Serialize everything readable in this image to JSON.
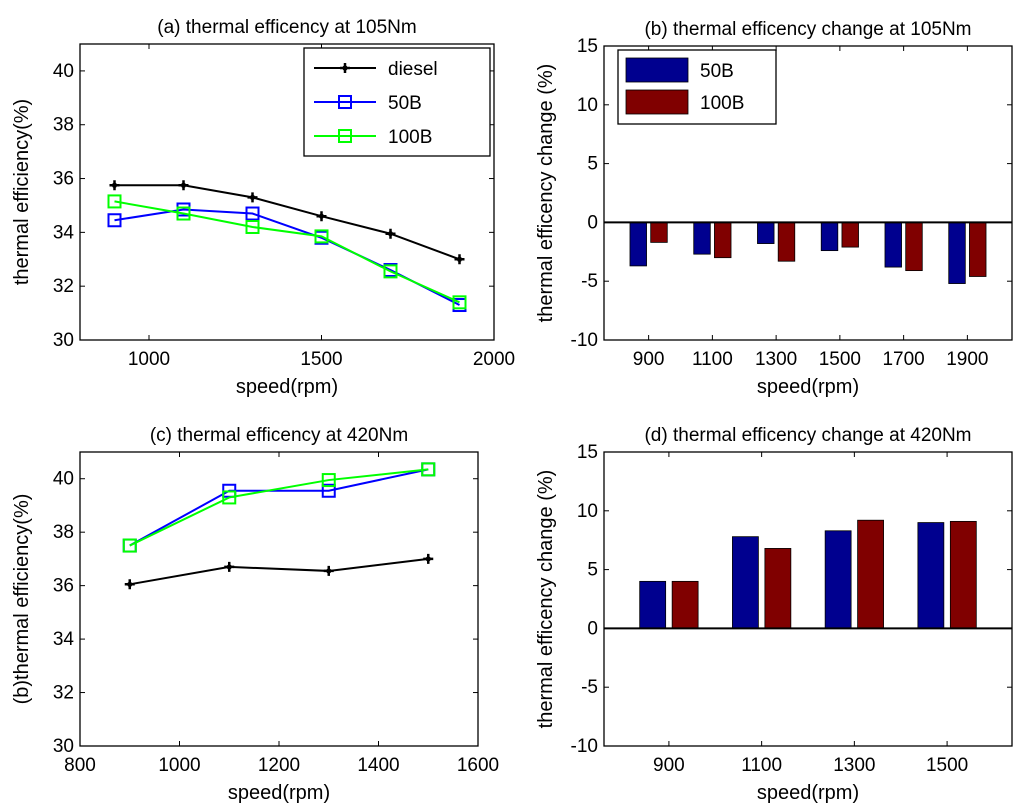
{
  "chart_data": [
    {
      "id": "a",
      "type": "line",
      "title": "(a) thermal efficency at 105Nm",
      "xlabel": "speed(rpm)",
      "ylabel": "thermal efficiency(%)",
      "xlim": [
        800,
        2000
      ],
      "ylim": [
        30,
        41
      ],
      "xticks": [
        1000,
        1500,
        2000
      ],
      "yticks": [
        30,
        32,
        34,
        36,
        38,
        40
      ],
      "x": [
        900,
        1100,
        1300,
        1500,
        1700,
        1900
      ],
      "series": [
        {
          "name": "diesel",
          "marker": "plus",
          "color": "#000000",
          "values": [
            35.75,
            35.75,
            35.3,
            34.6,
            33.95,
            33.0
          ]
        },
        {
          "name": "50B",
          "marker": "square",
          "color": "#0000ff",
          "values": [
            34.45,
            34.85,
            34.7,
            33.8,
            32.6,
            31.3
          ]
        },
        {
          "name": "100B",
          "marker": "square",
          "color": "#00ff00",
          "values": [
            35.15,
            34.7,
            34.2,
            33.85,
            32.55,
            31.4
          ]
        }
      ],
      "legend": "top-right",
      "grid": false
    },
    {
      "id": "b",
      "type": "bar",
      "title": "(b) thermal efficency change at 105Nm",
      "xlabel": "speed(rpm)",
      "ylabel": "thermal efficency change (%)",
      "ylim": [
        -10,
        15
      ],
      "yticks": [
        -10,
        -5,
        0,
        5,
        10,
        15
      ],
      "categories": [
        "900",
        "1100",
        "1300",
        "1500",
        "1700",
        "1900"
      ],
      "series": [
        {
          "name": "50B",
          "color": "#00008f",
          "values": [
            -3.7,
            -2.7,
            -1.8,
            -2.4,
            -3.8,
            -5.2
          ]
        },
        {
          "name": "100B",
          "color": "#800000",
          "values": [
            -1.7,
            -3.0,
            -3.3,
            -2.1,
            -4.1,
            -4.6
          ]
        }
      ],
      "legend": "top-left",
      "grid": false
    },
    {
      "id": "c",
      "type": "line",
      "title": "(c) thermal efficency at 420Nm",
      "xlabel": "speed(rpm)",
      "ylabel": "(b)thermal efficiency(%)",
      "xlim": [
        800,
        1600
      ],
      "ylim": [
        30,
        41
      ],
      "xticks": [
        800,
        1000,
        1200,
        1400,
        1600
      ],
      "yticks": [
        30,
        32,
        34,
        36,
        38,
        40
      ],
      "x": [
        900,
        1100,
        1300,
        1500
      ],
      "series": [
        {
          "name": "diesel",
          "marker": "plus",
          "color": "#000000",
          "values": [
            36.05,
            36.7,
            36.55,
            37.0
          ]
        },
        {
          "name": "50B",
          "marker": "square",
          "color": "#0000ff",
          "values": [
            37.5,
            39.55,
            39.55,
            40.35
          ]
        },
        {
          "name": "100B",
          "marker": "square",
          "color": "#00ff00",
          "values": [
            37.5,
            39.3,
            39.95,
            40.35
          ]
        }
      ],
      "grid": false
    },
    {
      "id": "d",
      "type": "bar",
      "title": "(d) thermal efficency change at 420Nm",
      "xlabel": "speed(rpm)",
      "ylabel": "thermal efficency change (%)",
      "ylim": [
        -10,
        15
      ],
      "yticks": [
        -10,
        -5,
        0,
        5,
        10,
        15
      ],
      "categories": [
        "900",
        "1100",
        "1300",
        "1500"
      ],
      "series": [
        {
          "name": "50B",
          "color": "#00008f",
          "values": [
            4.0,
            7.8,
            8.3,
            9.0
          ]
        },
        {
          "name": "100B",
          "color": "#800000",
          "values": [
            4.0,
            6.8,
            9.2,
            9.1
          ]
        }
      ],
      "grid": false
    }
  ]
}
